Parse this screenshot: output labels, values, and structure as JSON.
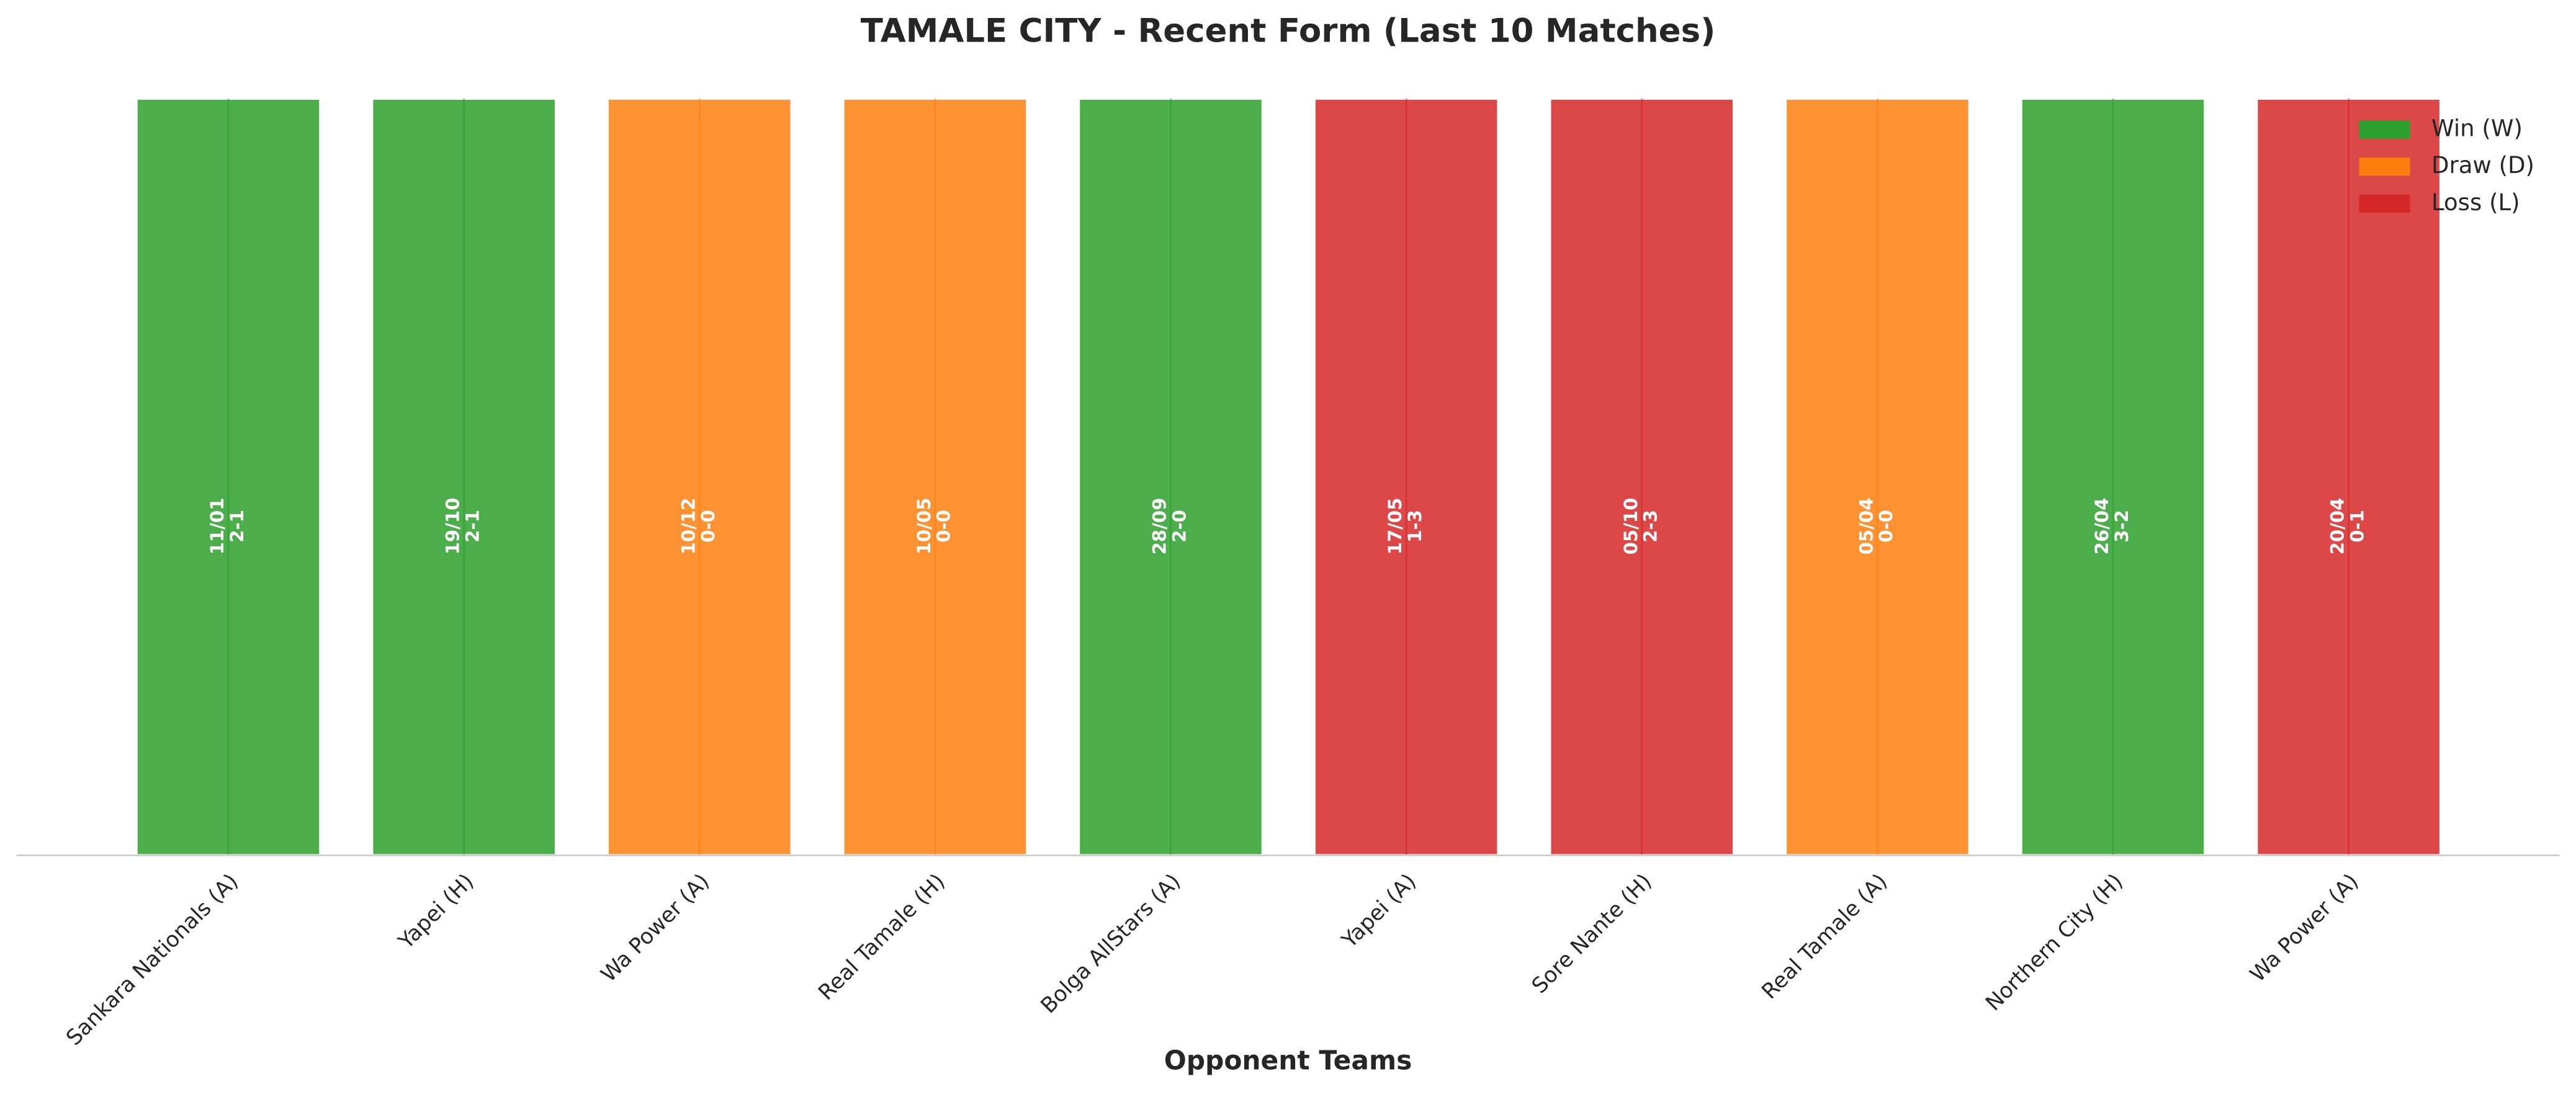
{
  "chart_data": {
    "type": "bar",
    "title": "TAMALE CITY - Recent Form (Last 10 Matches)",
    "x_label": "Opponent Teams",
    "categories": [
      "Sankara Nationals (A)",
      "Yapei (H)",
      "Wa Power (A)",
      "Real Tamale (H)",
      "Bolga AllStars (A)",
      "Yapei (A)",
      "Sore Nante (H)",
      "Real Tamale (A)",
      "Northern City (H)",
      "Wa Power (A)"
    ],
    "values": [
      1,
      1,
      1,
      1,
      1,
      1,
      1,
      1,
      1,
      1
    ],
    "dates": [
      "11/01",
      "19/10",
      "10/12",
      "10/05",
      "28/09",
      "17/05",
      "05/10",
      "05/04",
      "26/04",
      "20/04"
    ],
    "scores": [
      "2-1",
      "2-1",
      "0-0",
      "0-0",
      "2-0",
      "1-3",
      "2-3",
      "0-0",
      "3-2",
      "0-1"
    ],
    "colors": [
      "#2ca02c",
      "#2ca02c",
      "#ff7f0e",
      "#ff7f0e",
      "#2ca02c",
      "#d62728",
      "#d62728",
      "#ff7f0e",
      "#2ca02c",
      "#d62728"
    ],
    "ylim": [
      0,
      1
    ],
    "legend_position": "upper right",
    "legend": [
      {
        "name": "Win (W)",
        "color": "#2ca02c"
      },
      {
        "name": "Draw (D)",
        "color": "#ff7f0e"
      },
      {
        "name": "Loss (L)",
        "color": "#d62728"
      }
    ]
  }
}
